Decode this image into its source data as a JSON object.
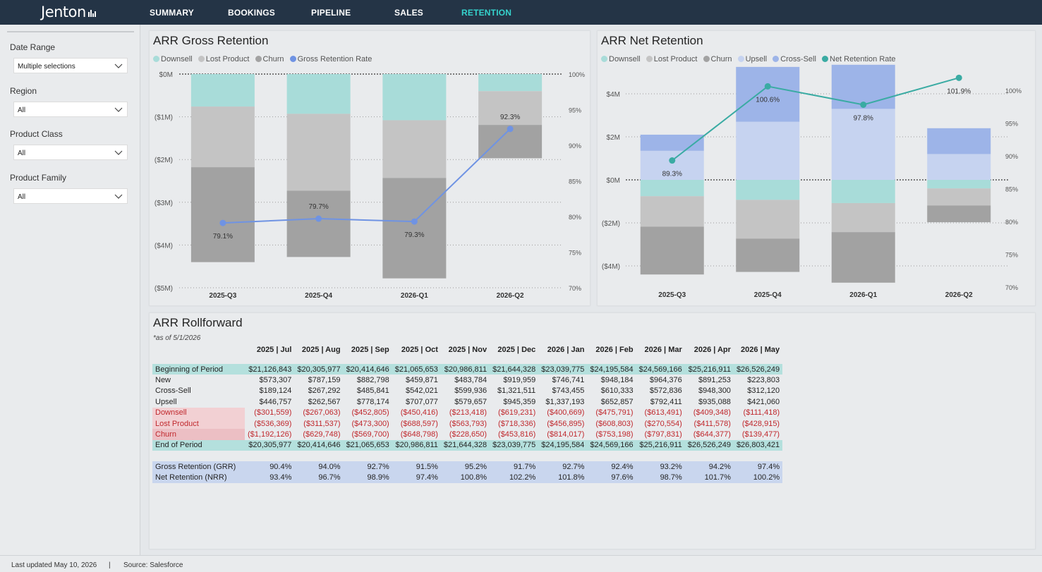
{
  "app": {
    "logo": "Jenton",
    "nav": [
      "SUMMARY",
      "BOOKINGS",
      "PIPELINE",
      "SALES",
      "RETENTION"
    ],
    "active_tab": "RETENTION"
  },
  "filters": [
    {
      "label": "Date Range",
      "value": "Multiple selections"
    },
    {
      "label": "Region",
      "value": "All"
    },
    {
      "label": "Product Class",
      "value": "All"
    },
    {
      "label": "Product Family",
      "value": "All"
    }
  ],
  "colors": {
    "downsell": "#a8dcd9",
    "lost_product": "#c4c4c4",
    "churn": "#a2a2a2",
    "upsell": "#c6d3f0",
    "cross_sell": "#9db4e8",
    "gross_line": "#6f93e3",
    "net_line": "#3aaba3",
    "nav_active": "#35d3cd"
  },
  "chart_data": [
    {
      "type": "bar",
      "title": "ARR Gross Retention",
      "categories": [
        "2025-Q3",
        "2025-Q4",
        "2026-Q1",
        "2026-Q2"
      ],
      "legend": [
        "Downsell",
        "Lost Product",
        "Churn",
        "Gross Retention Rate"
      ],
      "ylim": [
        -5,
        0
      ],
      "y_ticks": [
        "$0M",
        "($1M)",
        "($2M)",
        "($3M)",
        "($4M)",
        "($5M)"
      ],
      "y2lim": [
        70,
        100
      ],
      "y2_ticks": [
        "100%",
        "95%",
        "90%",
        "85%",
        "80%",
        "75%",
        "70%"
      ],
      "series": [
        {
          "name": "Downsell",
          "values": [
            -0.76,
            -0.93,
            -1.08,
            -0.4
          ]
        },
        {
          "name": "Lost Product",
          "values": [
            -1.42,
            -1.8,
            -1.35,
            -0.79
          ]
        },
        {
          "name": "Churn",
          "values": [
            -2.22,
            -1.55,
            -2.35,
            -0.78
          ]
        },
        {
          "name": "Gross Retention Rate",
          "values": [
            79.1,
            79.7,
            79.3,
            92.3
          ],
          "labels": [
            "79.1%",
            "79.7%",
            "79.3%",
            "92.3%"
          ]
        }
      ]
    },
    {
      "type": "bar",
      "title": "ARR Net Retention",
      "categories": [
        "2025-Q3",
        "2025-Q4",
        "2026-Q1",
        "2026-Q2"
      ],
      "legend": [
        "Downsell",
        "Lost Product",
        "Churn",
        "Upsell",
        "Cross-Sell",
        "Net Retention Rate"
      ],
      "ylim": [
        -5,
        5
      ],
      "y_ticks": [
        "$4M",
        "$2M",
        "$0M",
        "($2M)",
        "($4M)"
      ],
      "y_tick_values": [
        4,
        2,
        0,
        -2,
        -4
      ],
      "y2lim": [
        70,
        102.5
      ],
      "y2_ticks": [
        "100%",
        "95%",
        "90%",
        "85%",
        "80%",
        "75%",
        "70%"
      ],
      "series": [
        {
          "name": "Downsell",
          "values": [
            -0.76,
            -0.93,
            -1.08,
            -0.4
          ]
        },
        {
          "name": "Lost Product",
          "values": [
            -1.42,
            -1.8,
            -1.35,
            -0.79
          ]
        },
        {
          "name": "Churn",
          "values": [
            -2.22,
            -1.55,
            -2.35,
            -0.78
          ]
        },
        {
          "name": "Upsell",
          "values": [
            1.35,
            2.7,
            3.3,
            1.2
          ]
        },
        {
          "name": "Cross-Sell",
          "values": [
            0.75,
            2.55,
            2.05,
            1.2
          ]
        },
        {
          "name": "Net Retention Rate",
          "values": [
            89.3,
            100.6,
            97.8,
            101.9
          ],
          "labels": [
            "89.3%",
            "100.6%",
            "97.8%",
            "101.9%"
          ]
        }
      ]
    }
  ],
  "rollforward": {
    "title": "ARR Rollforward",
    "asof": "*as of 5/1/2026",
    "columns": [
      "2025 | Jul",
      "2025 | Aug",
      "2025 | Sep",
      "2025 | Oct",
      "2025 | Nov",
      "2025 | Dec",
      "2026 | Jan",
      "2026 | Feb",
      "2026 | Mar",
      "2026 | Apr",
      "2026 | May"
    ],
    "rows": [
      {
        "label": "Beginning of Period",
        "style": "hl",
        "values": [
          "$21,126,843",
          "$20,305,977",
          "$20,414,646",
          "$21,065,653",
          "$20,986,811",
          "$21,644,328",
          "$23,039,775",
          "$24,195,584",
          "$24,569,166",
          "$25,216,911",
          "$26,526,249"
        ]
      },
      {
        "label": "New",
        "style": "",
        "values": [
          "$573,307",
          "$787,159",
          "$882,798",
          "$459,871",
          "$483,784",
          "$919,959",
          "$746,741",
          "$948,184",
          "$964,376",
          "$891,253",
          "$223,803"
        ]
      },
      {
        "label": "Cross-Sell",
        "style": "",
        "values": [
          "$189,124",
          "$267,292",
          "$485,841",
          "$542,021",
          "$599,936",
          "$1,321,511",
          "$743,455",
          "$610,333",
          "$572,836",
          "$948,300",
          "$312,120"
        ]
      },
      {
        "label": "Upsell",
        "style": "",
        "values": [
          "$446,757",
          "$262,567",
          "$778,174",
          "$707,077",
          "$579,657",
          "$945,359",
          "$1,337,193",
          "$652,857",
          "$792,411",
          "$935,088",
          "$421,060"
        ]
      },
      {
        "label": "Downsell",
        "style": "neg",
        "values": [
          "($301,559)",
          "($267,063)",
          "($452,805)",
          "($450,416)",
          "($213,418)",
          "($619,231)",
          "($400,669)",
          "($475,791)",
          "($613,491)",
          "($409,348)",
          "($111,418)"
        ]
      },
      {
        "label": "Lost Product",
        "style": "neg",
        "values": [
          "($536,369)",
          "($311,537)",
          "($473,300)",
          "($688,597)",
          "($563,793)",
          "($718,336)",
          "($456,895)",
          "($608,803)",
          "($270,554)",
          "($411,578)",
          "($428,915)"
        ]
      },
      {
        "label": "Churn",
        "style": "neg churn",
        "values": [
          "($1,192,126)",
          "($629,748)",
          "($569,700)",
          "($648,798)",
          "($228,650)",
          "($453,816)",
          "($814,017)",
          "($753,198)",
          "($797,831)",
          "($644,377)",
          "($139,477)"
        ]
      },
      {
        "label": "End of Period",
        "style": "hl",
        "values": [
          "$20,305,977",
          "$20,414,646",
          "$21,065,653",
          "$20,986,811",
          "$21,644,328",
          "$23,039,775",
          "$24,195,584",
          "$24,569,166",
          "$25,216,911",
          "$26,526,249",
          "$26,803,421"
        ]
      },
      {
        "label": "",
        "style": "spacer",
        "values": []
      },
      {
        "label": "Gross Retention (GRR)",
        "style": "ratio",
        "values": [
          "90.4%",
          "94.0%",
          "92.7%",
          "91.5%",
          "95.2%",
          "91.7%",
          "92.7%",
          "92.4%",
          "93.2%",
          "94.2%",
          "97.4%"
        ]
      },
      {
        "label": "Net Retention (NRR)",
        "style": "ratio",
        "values": [
          "93.4%",
          "96.7%",
          "98.9%",
          "97.4%",
          "100.8%",
          "102.2%",
          "101.8%",
          "97.6%",
          "98.7%",
          "101.7%",
          "100.2%"
        ]
      }
    ]
  },
  "footer": {
    "updated": "Last updated May 10, 2026",
    "separator": "|",
    "source": "Source: Salesforce"
  }
}
